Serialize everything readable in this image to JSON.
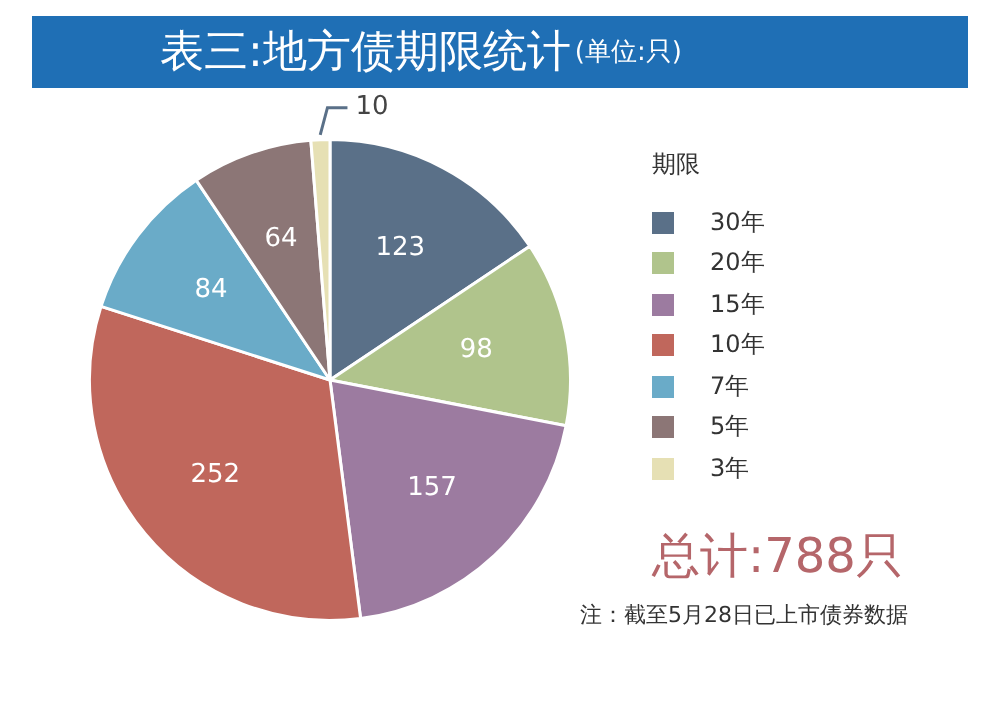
{
  "chart_data": {
    "type": "pie",
    "title": "表三:地方债期限统计",
    "subtitle": "(单位:只)",
    "legend_title": "期限",
    "legend": "right",
    "categories": [
      "30年",
      "20年",
      "15年",
      "10年",
      "7年",
      "5年",
      "3年"
    ],
    "values": [
      123,
      98,
      157,
      252,
      84,
      64,
      10
    ],
    "colors": [
      "#5a7088",
      "#b0c48c",
      "#9c7ba0",
      "#c0675c",
      "#6aabc8",
      "#8c7676",
      "#e6e0b4"
    ],
    "data_labels": true,
    "annotations": [
      "总计:788只",
      "注：截至5月28日已上市债券数据"
    ]
  }
}
